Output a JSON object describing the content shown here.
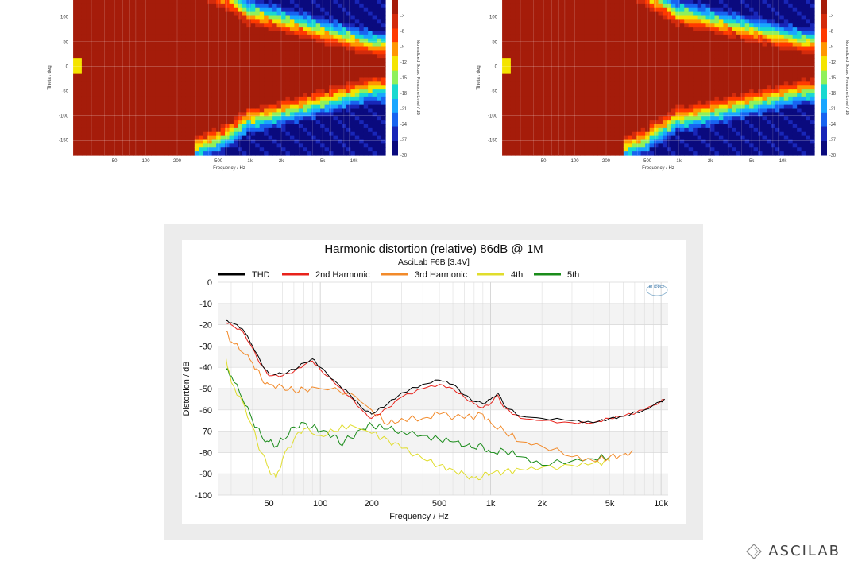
{
  "brand": {
    "name": "ASCILAB",
    "icon": "asci-diamond-icon"
  },
  "colors": {
    "outer_panel": "#ececec",
    "thd": "#000000",
    "h2": "#e8221b",
    "h3": "#f28a2a",
    "h4": "#e0dd2c",
    "h5": "#1a8c1a",
    "heat_scale": [
      "#a51c0a",
      "#d32b0c",
      "#ff3a00",
      "#ff9600",
      "#f4e400",
      "#8ff05b",
      "#19d9d0",
      "#19a6ff",
      "#1863f0",
      "#1826b8",
      "#0a0a7e"
    ]
  },
  "chart_data": [
    {
      "type": "heatmap",
      "name": "directivity-left",
      "title": "",
      "xlabel": "Frequency / Hz",
      "ylabel": "Theta / deg",
      "colorbar_label": "Normalized Sound Pressure Level / dB",
      "x_ticks": [
        "50",
        "100",
        "200",
        "500",
        "1k",
        "2k",
        "5k",
        "10k"
      ],
      "y_ticks": [
        "100",
        "50",
        "0",
        "-50",
        "-100",
        "-150"
      ],
      "colorbar_ticks": [
        "-3",
        "-6",
        "-9",
        "-12",
        "-15",
        "-18",
        "-21",
        "-24",
        "-27",
        "-30"
      ],
      "xlim": [
        20,
        20000
      ],
      "ylim": [
        -180,
        135
      ],
      "log_x": true,
      "colorbar_range": [
        -30,
        0
      ]
    },
    {
      "type": "heatmap",
      "name": "directivity-right",
      "title": "",
      "xlabel": "Frequency / Hz",
      "ylabel": "Theta / deg",
      "colorbar_label": "Normalized Sound Pressure Level / dB",
      "x_ticks": [
        "50",
        "100",
        "200",
        "500",
        "1k",
        "2k",
        "5k",
        "10k"
      ],
      "y_ticks": [
        "100",
        "50",
        "0",
        "-50",
        "-100",
        "-150"
      ],
      "colorbar_ticks": [
        "-3",
        "-6",
        "-9",
        "-12",
        "-15",
        "-18",
        "-21",
        "-24",
        "-27",
        "-30"
      ],
      "xlim": [
        20,
        20000
      ],
      "ylim": [
        -180,
        135
      ],
      "log_x": true,
      "colorbar_range": [
        -30,
        0
      ]
    },
    {
      "type": "line",
      "name": "harmonic-distortion",
      "title": "Harmonic distortion (relative) 86dB @ 1M",
      "subtitle": "AsciLab F6B [3.4V]",
      "xlabel": "Frequency / Hz",
      "ylabel": "Distortion / dB",
      "logo": "KLIPPEL",
      "log_x": true,
      "xlim": [
        25,
        11000
      ],
      "ylim": [
        -100,
        0
      ],
      "grid": true,
      "legend": "top",
      "x_ticks": [
        {
          "v": 50,
          "label": "50"
        },
        {
          "v": 100,
          "label": "100"
        },
        {
          "v": 200,
          "label": "200"
        },
        {
          "v": 500,
          "label": "500"
        },
        {
          "v": 1000,
          "label": "1k"
        },
        {
          "v": 2000,
          "label": "2k"
        },
        {
          "v": 5000,
          "label": "5k"
        },
        {
          "v": 10000,
          "label": "10k"
        }
      ],
      "y_ticks": [
        0,
        -10,
        -20,
        -30,
        -40,
        -50,
        -60,
        -70,
        -80,
        -90,
        -100
      ],
      "series": [
        {
          "name": "THD",
          "color": "#000000",
          "x": [
            28,
            30,
            35,
            40,
            45,
            50,
            60,
            70,
            80,
            90,
            100,
            120,
            150,
            180,
            200,
            250,
            300,
            400,
            500,
            600,
            700,
            800,
            900,
            1000,
            1100,
            1200,
            1500,
            2000,
            3000,
            4000,
            5000,
            6000,
            8000,
            10000,
            10500
          ],
          "y": [
            -18,
            -19,
            -22,
            -30,
            -38,
            -43,
            -43,
            -41,
            -38,
            -36,
            -40,
            -46,
            -53,
            -60,
            -62,
            -57,
            -52,
            -48,
            -46,
            -48,
            -53,
            -56,
            -57,
            -55,
            -52,
            -58,
            -63,
            -64,
            -65,
            -66,
            -64,
            -63,
            -60,
            -56,
            -55
          ]
        },
        {
          "name": "2nd Harmonic",
          "color": "#e8221b",
          "x": [
            28,
            30,
            35,
            40,
            45,
            50,
            60,
            70,
            80,
            90,
            100,
            120,
            150,
            180,
            200,
            250,
            300,
            400,
            500,
            600,
            700,
            800,
            900,
            1000,
            1100,
            1200,
            1500,
            2000,
            3000,
            4000,
            5000,
            6000,
            8000,
            10000,
            10500
          ],
          "y": [
            -19,
            -20,
            -23,
            -31,
            -39,
            -44,
            -44,
            -42,
            -39,
            -37,
            -41,
            -47,
            -54,
            -61,
            -64,
            -59,
            -54,
            -50,
            -48,
            -50,
            -54,
            -57,
            -59,
            -57,
            -53,
            -59,
            -64,
            -65,
            -66,
            -66,
            -64,
            -63,
            -60,
            -56,
            -55
          ]
        },
        {
          "name": "3rd Harmonic",
          "color": "#f28a2a",
          "x": [
            28,
            30,
            35,
            40,
            45,
            50,
            60,
            70,
            80,
            100,
            150,
            200,
            250,
            300,
            400,
            500,
            700,
            900,
            1000,
            1200,
            1500,
            2000,
            3000,
            4000,
            5000,
            6000,
            6800
          ],
          "y": [
            -23,
            -28,
            -33,
            -38,
            -45,
            -48,
            -49,
            -51,
            -50,
            -50,
            -52,
            -60,
            -67,
            -64,
            -64,
            -62,
            -64,
            -62,
            -66,
            -70,
            -75,
            -77,
            -82,
            -84,
            -82,
            -81,
            -79
          ]
        },
        {
          "name": "4th",
          "color": "#e0dd2c",
          "x": [
            28,
            30,
            35,
            40,
            45,
            50,
            55,
            60,
            70,
            80,
            100,
            120,
            150,
            200,
            250,
            300,
            400,
            500,
            600,
            700,
            800,
            900,
            1000,
            1200,
            1500,
            2000,
            3000,
            4000,
            5000
          ],
          "y": [
            -36,
            -47,
            -56,
            -68,
            -80,
            -88,
            -92,
            -83,
            -74,
            -69,
            -72,
            -70,
            -67,
            -71,
            -74,
            -78,
            -83,
            -86,
            -88,
            -90,
            -92,
            -91,
            -90,
            -89,
            -88,
            -87,
            -86,
            -85,
            -84
          ]
        },
        {
          "name": "5th",
          "color": "#1a8c1a",
          "x": [
            28,
            30,
            35,
            40,
            45,
            50,
            55,
            60,
            70,
            80,
            90,
            100,
            120,
            130,
            150,
            180,
            200,
            250,
            300,
            400,
            500,
            600,
            700,
            800,
            900,
            1000,
            1200,
            1500,
            2000,
            3000,
            4000,
            5000
          ],
          "y": [
            -41,
            -44,
            -55,
            -65,
            -72,
            -75,
            -77,
            -74,
            -68,
            -66,
            -68,
            -70,
            -72,
            -76,
            -73,
            -69,
            -67,
            -69,
            -70,
            -72,
            -74,
            -75,
            -77,
            -78,
            -77,
            -80,
            -79,
            -82,
            -86,
            -84,
            -83,
            -82
          ]
        }
      ]
    }
  ]
}
